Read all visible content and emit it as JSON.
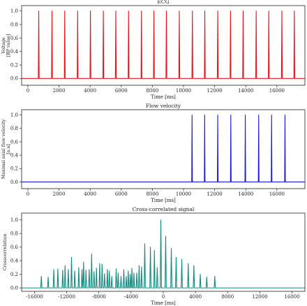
{
  "chart_data": [
    {
      "type": "line",
      "title": "ECG",
      "xlabel": "Time [ms]",
      "ylabel": "Voltage\n[BP value]",
      "xlim": [
        -400,
        17800
      ],
      "ylim": [
        -0.1,
        1.08
      ],
      "xticks": [
        0,
        2000,
        4000,
        6000,
        8000,
        10000,
        12000,
        14000,
        16000
      ],
      "yticks": [
        0.0,
        0.2,
        0.4,
        0.6,
        0.8,
        1.0
      ],
      "ytick_labels": [
        "0.0",
        "0.2",
        "0.4",
        "0.6",
        "0.8",
        "1.0"
      ],
      "grid": false,
      "series": [
        {
          "color": "#e8141c",
          "baseline": 0.0,
          "spike_width": 55,
          "spikes_x": [
            700,
            1550,
            2370,
            3200,
            4020,
            4850,
            5650,
            6470,
            7300,
            8100,
            8900,
            9730,
            10570,
            11370,
            12200,
            13020,
            13830,
            14670,
            15480,
            16320,
            17120
          ],
          "spikes_y": [
            1.0,
            1.0,
            1.0,
            1.0,
            1.0,
            1.0,
            1.0,
            1.0,
            1.0,
            1.0,
            1.0,
            1.0,
            1.0,
            1.0,
            1.0,
            1.0,
            1.0,
            1.0,
            1.0,
            1.0,
            1.0
          ]
        }
      ]
    },
    {
      "type": "line",
      "title": "Flow velocity",
      "xlabel": "Time [ms]",
      "ylabel": "Maximal axial flow velocity\n[a.u]",
      "xlim": [
        -400,
        17800
      ],
      "ylim": [
        -0.1,
        1.08
      ],
      "xticks": [
        0,
        2000,
        4000,
        6000,
        8000,
        10000,
        12000,
        14000,
        16000
      ],
      "yticks": [
        0.0,
        0.2,
        0.4,
        0.6,
        0.8,
        1.0
      ],
      "ytick_labels": [
        "0.0",
        "0.2",
        "0.4",
        "0.6",
        "0.8",
        "1.0"
      ],
      "grid": false,
      "series": [
        {
          "color": "#1a1ae0",
          "baseline": 0.0,
          "spike_width": 45,
          "spikes_x": [
            10550,
            11360,
            12200,
            13040,
            13970,
            14830,
            15660,
            16520
          ],
          "spikes_y": [
            1.0,
            1.0,
            1.0,
            1.0,
            1.0,
            1.0,
            1.0,
            1.0
          ]
        }
      ]
    },
    {
      "type": "line",
      "title": "Cross-correlated signal",
      "xlabel": "Time [ms]",
      "ylabel": "Crosscorrelation",
      "xlim": [
        -17600,
        17600
      ],
      "ylim": [
        -0.05,
        1.1
      ],
      "xticks": [
        -16000,
        -12000,
        -8000,
        -4000,
        0,
        4000,
        8000,
        12000,
        16000
      ],
      "yticks": [
        0.0,
        0.2,
        0.4,
        0.6,
        0.8,
        1.0
      ],
      "ytick_labels": [
        "0.0",
        "0.2",
        "0.4",
        "0.6",
        "0.8",
        "1.0"
      ],
      "grid": false,
      "series": [
        {
          "color": "#138a80",
          "baseline": 0.0,
          "spike_width": 150,
          "spikes_x": [
            -15150,
            -14300,
            -13600,
            -13100,
            -12500,
            -12200,
            -11800,
            -11400,
            -11000,
            -10500,
            -10100,
            -9900,
            -9600,
            -9200,
            -8900,
            -8600,
            -8300,
            -7900,
            -7600,
            -7300,
            -6950,
            -6700,
            -6400,
            -5850,
            -5600,
            -5250,
            -4900,
            -4600,
            -4350,
            -4100,
            -3900,
            -3650,
            -3300,
            -3000,
            -2700,
            -2300,
            -1600,
            -1100,
            -750,
            -300,
            300,
            1000,
            1600,
            2300,
            3100,
            3800,
            4600,
            5400,
            6400
          ],
          "spikes_y": [
            0.17,
            0.16,
            0.27,
            0.28,
            0.26,
            0.33,
            0.27,
            0.45,
            0.25,
            0.3,
            0.27,
            0.38,
            0.26,
            0.27,
            0.5,
            0.24,
            0.29,
            0.36,
            0.35,
            0.21,
            0.27,
            0.25,
            0.17,
            0.28,
            0.22,
            0.17,
            0.27,
            0.17,
            0.25,
            0.2,
            0.29,
            0.22,
            0.22,
            0.33,
            0.31,
            0.65,
            0.6,
            0.55,
            0.3,
            1.0,
            0.76,
            0.58,
            0.45,
            0.42,
            0.36,
            0.33,
            0.2,
            0.16,
            0.17
          ]
        }
      ]
    }
  ]
}
